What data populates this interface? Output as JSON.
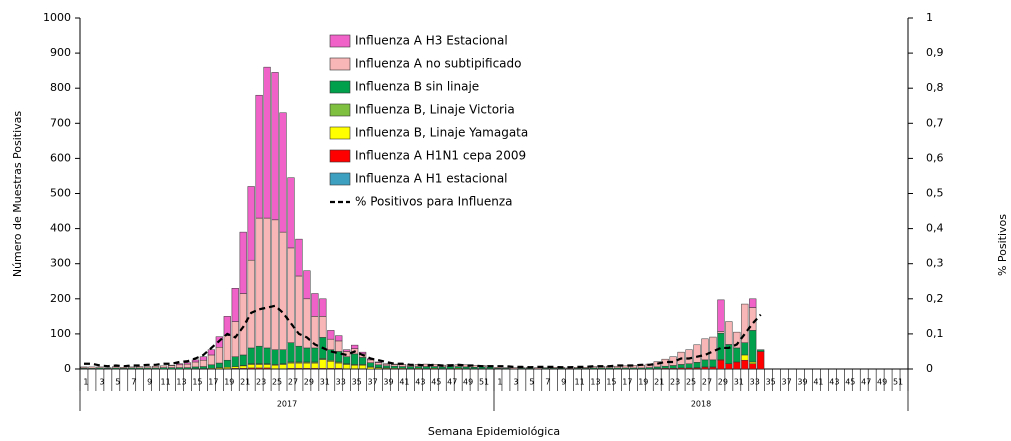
{
  "chart_data": {
    "type": "bar",
    "stacked": true,
    "y_label": "Número de Muestras Positivas",
    "y2_label": "% Positivos",
    "x_label": "Semana Epidemiológica",
    "legend": "top-center",
    "group_labels": [
      "2017",
      "2018"
    ],
    "categories": [
      "1",
      null,
      "3",
      null,
      "5",
      null,
      "7",
      null,
      "9",
      null,
      "11",
      null,
      "13",
      null,
      "15",
      null,
      "17",
      null,
      "19",
      null,
      "21",
      null,
      "23",
      null,
      "25",
      null,
      "27",
      null,
      "29",
      null,
      "31",
      null,
      "33",
      null,
      "35",
      null,
      "37",
      null,
      "39",
      null,
      "41",
      null,
      "43",
      null,
      "45",
      null,
      "47",
      null,
      "49",
      null,
      "51",
      null,
      "1",
      null,
      "3",
      null,
      "5",
      null,
      "7",
      null,
      "9",
      null,
      "11",
      null,
      "13",
      null,
      "15",
      null,
      "17",
      null,
      "19",
      null,
      "21",
      null,
      "23",
      null,
      "25",
      null,
      "27",
      null,
      "29",
      null,
      "31",
      null,
      "33",
      null,
      "35",
      null,
      "37",
      null,
      "39",
      null,
      "41",
      null,
      "43",
      null,
      "45",
      null,
      "47",
      null,
      "49",
      null,
      "51",
      null
    ],
    "ylim": [
      0,
      1000
    ],
    "yticks": [
      0,
      100,
      200,
      300,
      400,
      500,
      600,
      700,
      800,
      900,
      1000
    ],
    "y2lim": [
      0,
      1
    ],
    "y2ticks": [
      0,
      {
        "value": 0.1,
        "label": "0,1"
      },
      {
        "value": 0.2,
        "label": "0,2"
      },
      {
        "value": 0.3,
        "label": "0,3"
      },
      {
        "value": 0.4,
        "label": "0,4"
      },
      {
        "value": 0.5,
        "label": "0,5"
      },
      {
        "value": 0.6,
        "label": "0,6"
      },
      {
        "value": 0.7,
        "label": "0,7"
      },
      {
        "value": 0.8,
        "label": "0,8"
      },
      {
        "value": 0.9,
        "label": "0,9"
      },
      1
    ],
    "series": [
      {
        "name": "Influenza A H3 Estacional",
        "type": "bar",
        "color": "#f062c8",
        "values": [
          0,
          0,
          0,
          0,
          0,
          0,
          0,
          0,
          0,
          0,
          0,
          1,
          3,
          4,
          6,
          10,
          15,
          30,
          55,
          95,
          175,
          210,
          350,
          430,
          420,
          340,
          200,
          105,
          80,
          65,
          50,
          25,
          15,
          5,
          10,
          5,
          3,
          2,
          1,
          1,
          0,
          0,
          0,
          0,
          0,
          0,
          0,
          0,
          0,
          0,
          0,
          0,
          0,
          0,
          0,
          0,
          0,
          0,
          0,
          0,
          0,
          0,
          0,
          0,
          0,
          0,
          0,
          0,
          0,
          0,
          0,
          0,
          0,
          0,
          0,
          0,
          0,
          0,
          0,
          0,
          90,
          0,
          0,
          0,
          25,
          0,
          null,
          null,
          null,
          null,
          null,
          null,
          null,
          null,
          null,
          null,
          null,
          null,
          null,
          null,
          null,
          null,
          null,
          null
        ]
      },
      {
        "name": "Influenza A no subtipificado",
        "type": "bar",
        "color": "#f8b6b6",
        "values": [
          3,
          4,
          3,
          2,
          4,
          3,
          3,
          4,
          4,
          5,
          5,
          6,
          8,
          10,
          14,
          18,
          28,
          45,
          70,
          100,
          175,
          250,
          365,
          370,
          370,
          335,
          270,
          200,
          140,
          90,
          60,
          30,
          30,
          15,
          15,
          10,
          8,
          6,
          5,
          5,
          6,
          5,
          6,
          7,
          6,
          5,
          6,
          5,
          6,
          5,
          4,
          5,
          3,
          2,
          3,
          2,
          3,
          3,
          2,
          3,
          3,
          2,
          3,
          3,
          4,
          4,
          5,
          5,
          6,
          7,
          8,
          10,
          15,
          20,
          25,
          35,
          40,
          50,
          60,
          65,
          5,
          65,
          45,
          110,
          65,
          0,
          null,
          null,
          null,
          null,
          null,
          null,
          null,
          null,
          null,
          null,
          null,
          null,
          null,
          null,
          null,
          null,
          null,
          null
        ]
      },
      {
        "name": "Influenza B sin linaje",
        "type": "bar",
        "color": "#00a04c",
        "values": [
          2,
          2,
          3,
          2,
          3,
          2,
          3,
          3,
          3,
          3,
          4,
          4,
          4,
          4,
          5,
          6,
          10,
          13,
          20,
          28,
          30,
          45,
          50,
          45,
          42,
          40,
          55,
          45,
          40,
          40,
          60,
          30,
          30,
          20,
          30,
          20,
          12,
          8,
          6,
          6,
          5,
          6,
          5,
          6,
          5,
          5,
          6,
          5,
          5,
          4,
          5,
          4,
          2,
          2,
          1,
          2,
          2,
          1,
          2,
          2,
          2,
          1,
          2,
          2,
          3,
          3,
          3,
          3,
          3,
          3,
          3,
          4,
          5,
          6,
          8,
          10,
          12,
          15,
          20,
          20,
          75,
          55,
          40,
          35,
          90,
          5,
          null,
          null,
          null,
          null,
          null,
          null,
          null,
          null,
          null,
          null,
          null,
          null,
          null,
          null,
          null,
          null,
          null,
          null
        ]
      },
      {
        "name": "Influenza B, Linaje Victoria",
        "type": "bar",
        "color": "#80c040",
        "values": [
          0,
          0,
          0,
          0,
          0,
          0,
          0,
          0,
          0,
          0,
          0,
          0,
          0,
          0,
          0,
          0,
          0,
          0,
          0,
          0,
          1,
          2,
          2,
          2,
          2,
          2,
          3,
          3,
          3,
          3,
          3,
          3,
          3,
          2,
          2,
          2,
          1,
          1,
          1,
          0,
          0,
          0,
          0,
          0,
          0,
          0,
          0,
          0,
          0,
          0,
          0,
          0,
          0,
          0,
          0,
          0,
          0,
          0,
          0,
          0,
          0,
          0,
          0,
          0,
          0,
          0,
          0,
          0,
          0,
          0,
          0,
          0,
          0,
          0,
          0,
          0,
          0,
          0,
          0,
          0,
          0,
          0,
          0,
          0,
          0,
          0,
          null,
          null,
          null,
          null,
          null,
          null,
          null,
          null,
          null,
          null,
          null,
          null,
          null,
          null,
          null,
          null,
          null,
          null
        ]
      },
      {
        "name": "Influenza B, Linaje Yamagata",
        "type": "bar",
        "color": "#ffff00",
        "values": [
          0,
          0,
          0,
          0,
          0,
          0,
          0,
          0,
          0,
          0,
          0,
          0,
          0,
          0,
          1,
          1,
          2,
          3,
          4,
          5,
          7,
          10,
          10,
          10,
          10,
          12,
          15,
          15,
          15,
          15,
          25,
          20,
          15,
          12,
          10,
          10,
          5,
          3,
          2,
          2,
          2,
          1,
          2,
          1,
          2,
          1,
          1,
          2,
          1,
          1,
          1,
          1,
          0,
          0,
          0,
          0,
          0,
          0,
          0,
          0,
          0,
          0,
          0,
          0,
          0,
          0,
          0,
          0,
          0,
          0,
          0,
          0,
          0,
          0,
          0,
          0,
          0,
          1,
          1,
          1,
          2,
          0,
          0,
          15,
          5,
          0,
          null,
          null,
          null,
          null,
          null,
          null,
          null,
          null,
          null,
          null,
          null,
          null,
          null,
          null,
          null,
          null,
          null,
          null
        ]
      },
      {
        "name": "Influenza A H1N1 cepa 2009",
        "type": "bar",
        "color": "#ff0000",
        "values": [
          0,
          0,
          0,
          0,
          0,
          0,
          0,
          0,
          0,
          0,
          0,
          0,
          0,
          0,
          0,
          0,
          0,
          1,
          1,
          2,
          2,
          3,
          3,
          3,
          1,
          1,
          2,
          2,
          2,
          2,
          2,
          2,
          2,
          1,
          1,
          1,
          0,
          0,
          0,
          0,
          0,
          0,
          0,
          0,
          0,
          0,
          0,
          0,
          0,
          0,
          0,
          0,
          0,
          0,
          0,
          0,
          0,
          0,
          0,
          0,
          0,
          0,
          0,
          0,
          0,
          0,
          0,
          0,
          0,
          0,
          0,
          0,
          1,
          2,
          2,
          3,
          3,
          3,
          5,
          5,
          25,
          15,
          20,
          25,
          15,
          50,
          null,
          null,
          null,
          null,
          null,
          null,
          null,
          null,
          null,
          null,
          null,
          null,
          null,
          null,
          null,
          null,
          null,
          null
        ]
      },
      {
        "name": "Influenza A H1 estacional",
        "type": "bar",
        "color": "#3ea0c0",
        "values": [
          1,
          0,
          0,
          0,
          0,
          0,
          0,
          0,
          0,
          0,
          0,
          0,
          0,
          0,
          0,
          0,
          0,
          0,
          0,
          0,
          0,
          0,
          0,
          0,
          0,
          0,
          0,
          0,
          0,
          0,
          0,
          0,
          0,
          0,
          0,
          0,
          0,
          0,
          0,
          0,
          0,
          0,
          0,
          0,
          0,
          0,
          0,
          0,
          0,
          0,
          0,
          0,
          0,
          0,
          0,
          0,
          0,
          0,
          0,
          0,
          0,
          0,
          0,
          0,
          0,
          0,
          0,
          0,
          0,
          0,
          0,
          0,
          0,
          0,
          0,
          0,
          0,
          0,
          0,
          0,
          0,
          0,
          0,
          0,
          0,
          0,
          null,
          null,
          null,
          null,
          null,
          null,
          null,
          null,
          null,
          null,
          null,
          null,
          null,
          null,
          null,
          null,
          null,
          null
        ]
      },
      {
        "name": "% Positivos para Influenza",
        "type": "line",
        "axis": "y2",
        "color": "#000000",
        "line_style": "dashed",
        "values": [
          0.015,
          0.015,
          0.01,
          0.008,
          0.01,
          0.008,
          0.01,
          0.01,
          0.012,
          0.012,
          0.015,
          0.015,
          0.02,
          0.022,
          0.03,
          0.04,
          0.06,
          0.08,
          0.1,
          0.09,
          0.12,
          0.16,
          0.17,
          0.175,
          0.18,
          0.16,
          0.13,
          0.1,
          0.09,
          0.07,
          0.06,
          0.05,
          0.045,
          0.04,
          0.05,
          0.04,
          0.03,
          0.025,
          0.02,
          0.015,
          0.015,
          0.012,
          0.012,
          0.01,
          0.012,
          0.01,
          0.01,
          0.012,
          0.01,
          0.01,
          0.008,
          0.008,
          0.008,
          0.008,
          0.006,
          0.006,
          0.005,
          0.006,
          0.006,
          0.006,
          0.005,
          0.005,
          0.006,
          0.006,
          0.008,
          0.008,
          0.008,
          0.01,
          0.01,
          0.01,
          0.012,
          0.012,
          0.015,
          0.02,
          0.02,
          0.03,
          0.03,
          0.035,
          0.04,
          0.05,
          0.06,
          0.06,
          0.07,
          0.1,
          0.13,
          0.155,
          null,
          null,
          null,
          null,
          null,
          null,
          null,
          null,
          null,
          null,
          null,
          null,
          null,
          null,
          null,
          null,
          null,
          null
        ]
      }
    ]
  }
}
